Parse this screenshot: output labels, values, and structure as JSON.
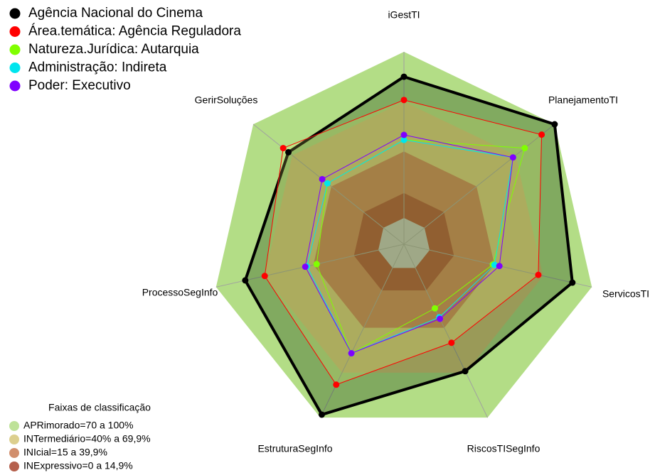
{
  "chart_data": {
    "type": "radar",
    "axes": [
      "iGestTI",
      "PlanejamentoTI",
      "ServicosTI",
      "RiscosTISegInfo",
      "EstruturaSegInfo",
      "ProcessoSegInfo",
      "GerirSoluções"
    ],
    "rlim": [
      0,
      100
    ],
    "series": [
      {
        "name": "Agência Nacional do Cinema",
        "color": "#000000",
        "values": [
          85,
          100,
          88,
          69,
          98,
          82,
          73
        ]
      },
      {
        "name": "Área.temática: Agência Reguladora",
        "color": "#ff0000",
        "values": [
          71,
          90,
          67,
          50,
          78,
          70,
          77
        ]
      },
      {
        "name": "Natureza.Jurídica: Autarquia",
        "color": "#80ff00",
        "values": [
          47,
          77,
          39,
          27,
          57,
          38,
          43
        ]
      },
      {
        "name": "Administração: Indireta",
        "color": "#00e5ee",
        "values": [
          47,
          68,
          40,
          33,
          57,
          44,
          43
        ]
      },
      {
        "name": "Poder: Executivo",
        "color": "#8000ff",
        "values": [
          50,
          68,
          43,
          34,
          57,
          45,
          47
        ]
      }
    ],
    "bands_title": "Faixas de classificação",
    "bands": [
      {
        "label": "APRimorado=70 a 100%",
        "min": 70,
        "max": 100,
        "color": "#b3dd86"
      },
      {
        "label": "INTermediário=40% a 69,9%",
        "min": 40,
        "max": 70,
        "color": "#d6c77a"
      },
      {
        "label": "INIcial=15 a 39,9%",
        "min": 15,
        "max": 40,
        "color": "#c97a52"
      },
      {
        "label": "INExpressivo=0 a 14,9%",
        "min": 0,
        "max": 15,
        "color": "#a8442e"
      }
    ]
  }
}
